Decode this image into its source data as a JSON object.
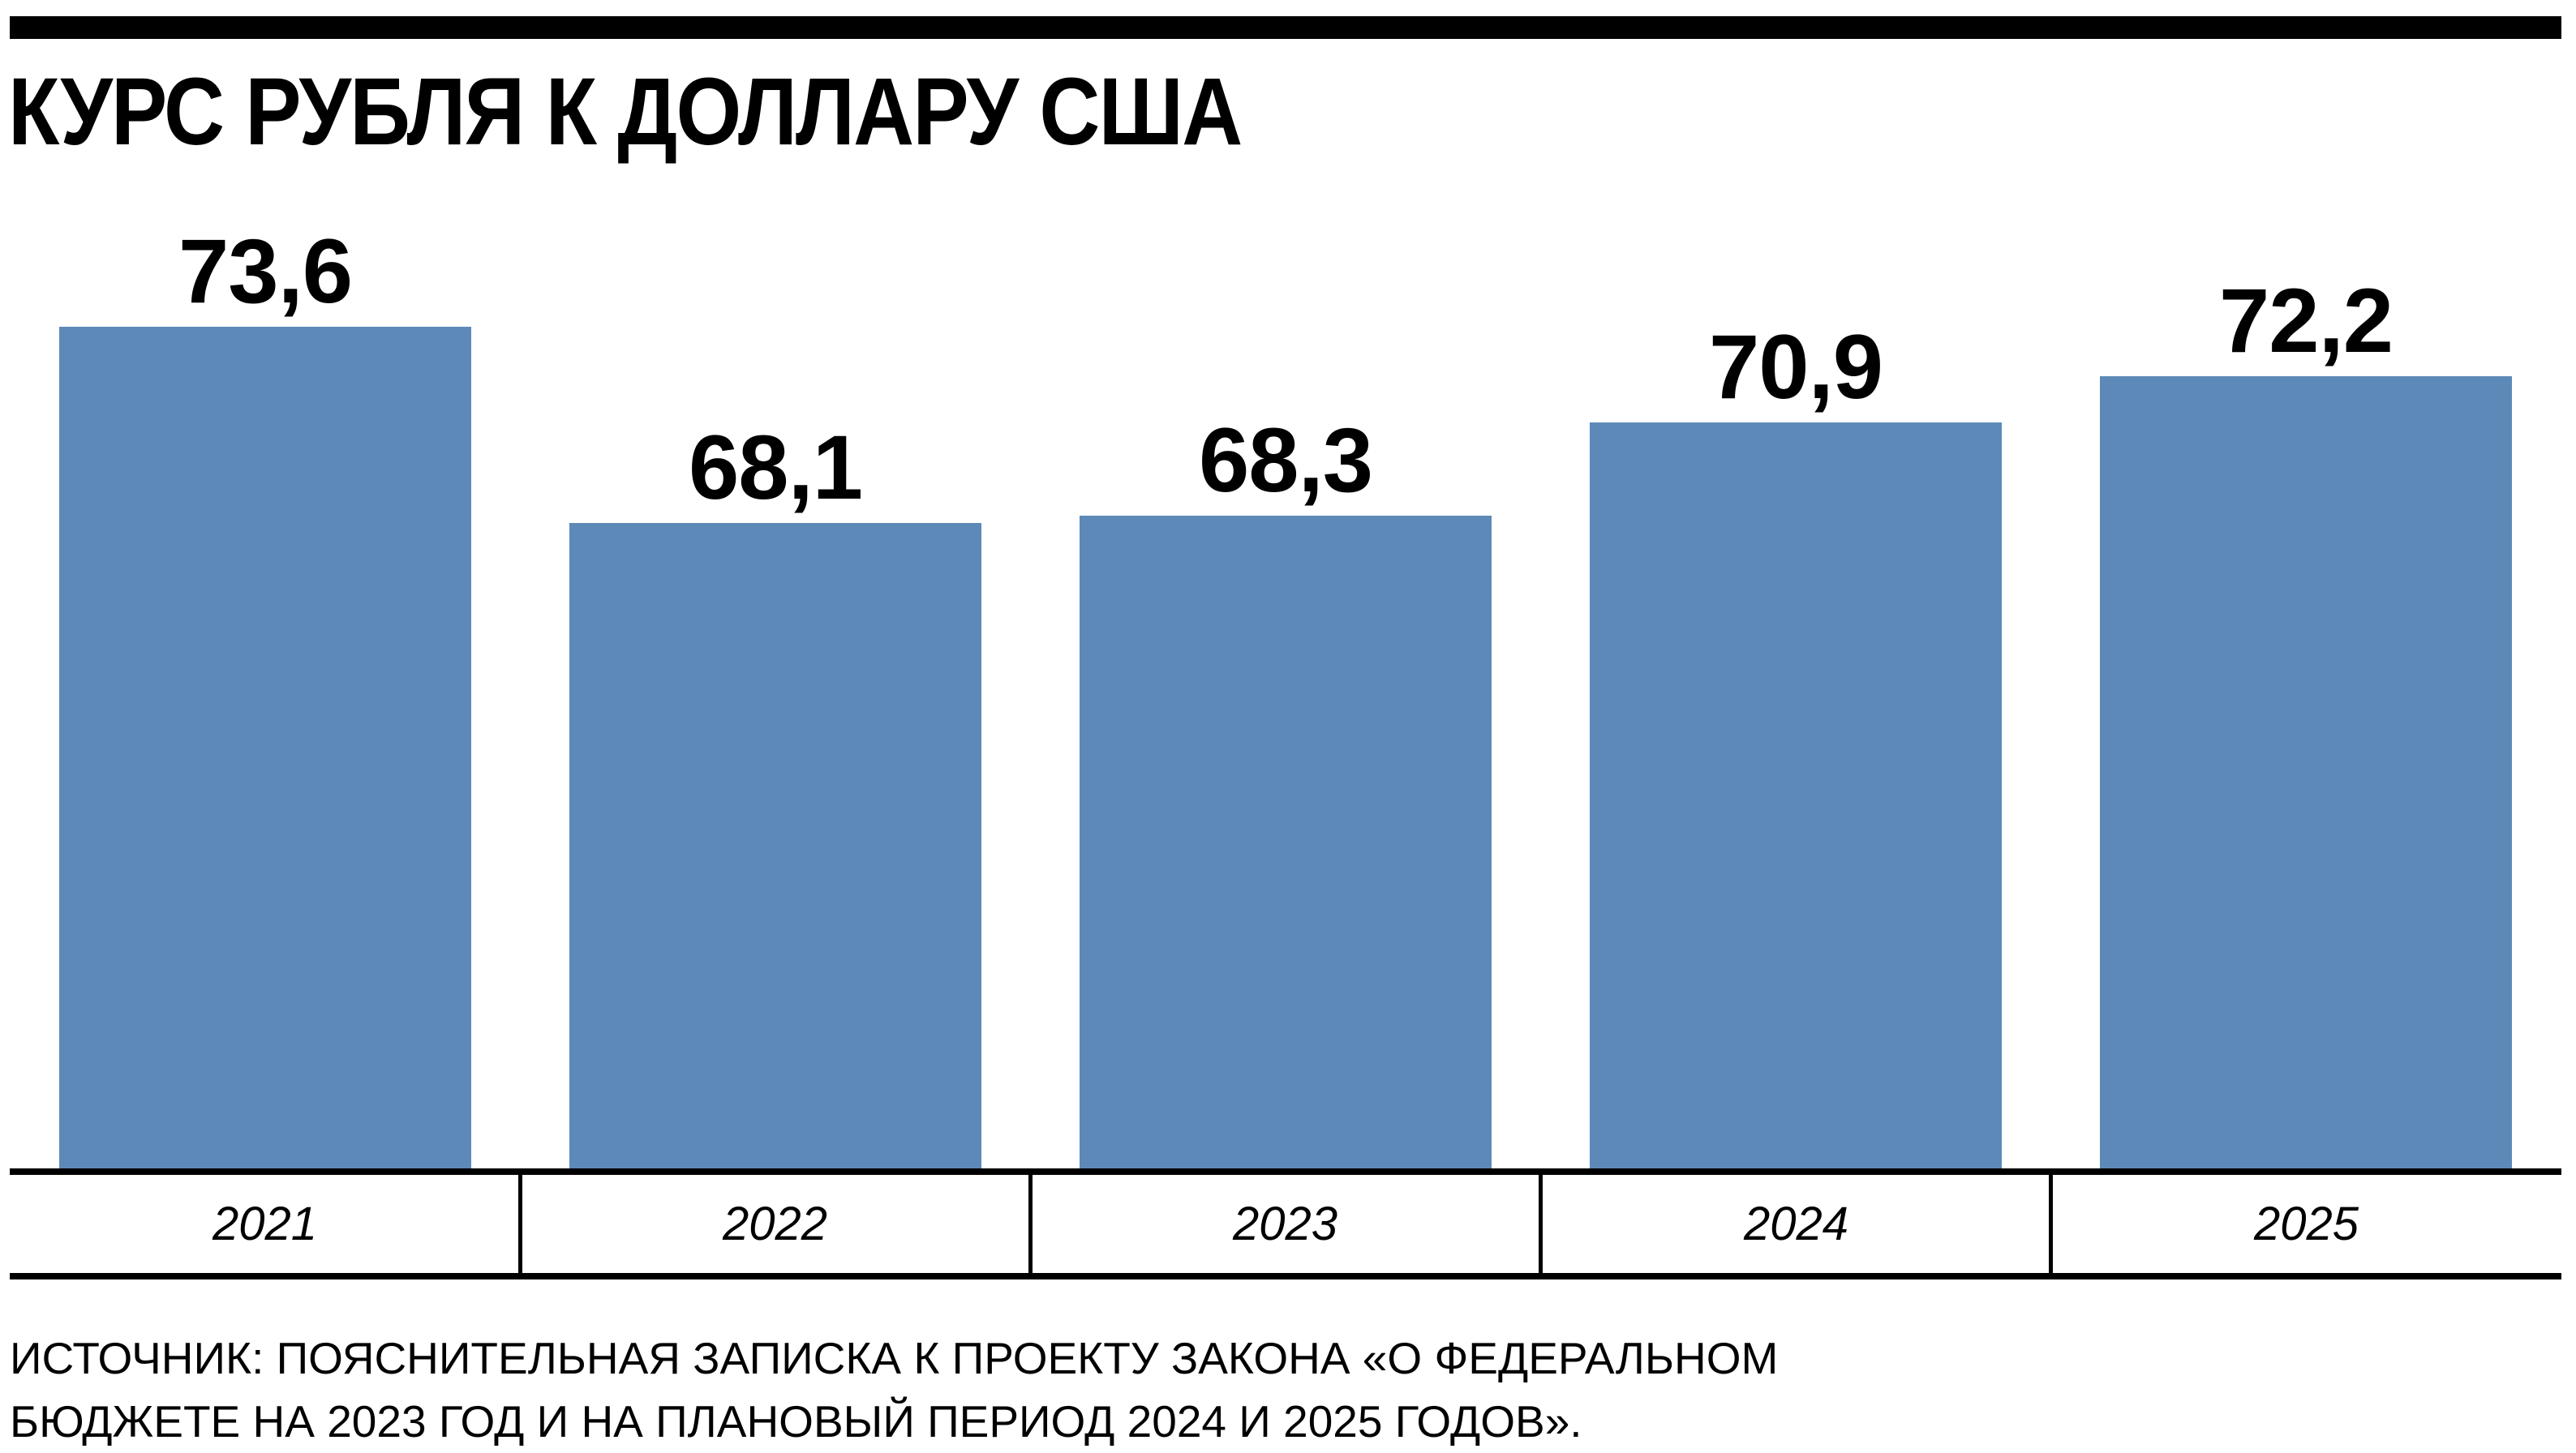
{
  "colors": {
    "bar": "#5d89b8",
    "rule": "#000000",
    "background": "#ffffff",
    "text": "#000000"
  },
  "chart_data": {
    "type": "bar",
    "title": "КУРС РУБЛЯ К ДОЛЛАРУ США",
    "categories": [
      "2021",
      "2022",
      "2023",
      "2024",
      "2025"
    ],
    "values": [
      73.6,
      68.1,
      68.3,
      70.9,
      72.2
    ],
    "value_labels": [
      "73,6",
      "68,1",
      "68,3",
      "70,9",
      "72,2"
    ],
    "ylabel": "",
    "xlabel": "",
    "ylim": [
      50,
      75
    ],
    "grid": false,
    "legend": "none",
    "source_line1": "ИСТОЧНИК: ПОЯСНИТЕЛЬНАЯ ЗАПИСКА К ПРОЕКТУ ЗАКОНА «О ФЕДЕРАЛЬНОМ",
    "source_line2": "БЮДЖЕТЕ НА 2023 ГОД И НА ПЛАНОВЫЙ ПЕРИОД 2024 И 2025 ГОДОВ»."
  }
}
